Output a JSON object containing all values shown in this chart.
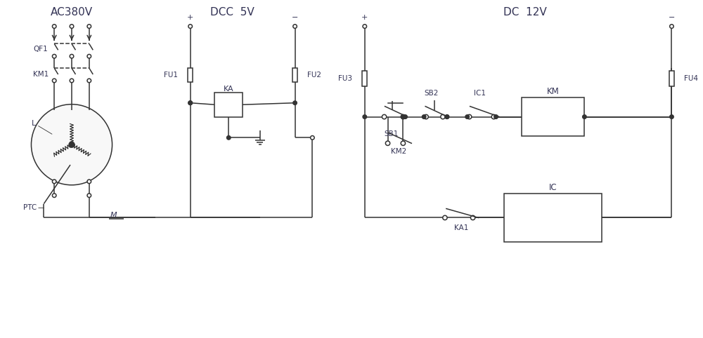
{
  "title_ac": "AC380V",
  "title_dcc": "DCC  5V",
  "title_dc": "DC  12V",
  "bg_color": "#ffffff",
  "lc": "#333333",
  "tc": "#333355",
  "lw": 1.1
}
